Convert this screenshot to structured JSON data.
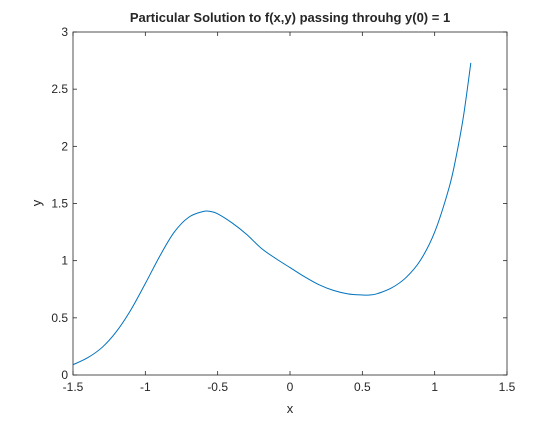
{
  "chart_data": {
    "type": "line",
    "title": "Particular Solution to f(x,y) passing throuhg y(0) = 1",
    "xlabel": "x",
    "ylabel": "y",
    "xlim": [
      -1.5,
      1.5
    ],
    "ylim": [
      0,
      3
    ],
    "xticks": [
      -1.5,
      -1,
      -0.5,
      0,
      0.5,
      1,
      1.5
    ],
    "xtick_labels": [
      "-1.5",
      "-1",
      "-0.5",
      "0",
      "0.5",
      "1",
      "1.5"
    ],
    "yticks": [
      0,
      0.5,
      1,
      1.5,
      2,
      2.5,
      3
    ],
    "ytick_labels": [
      "0",
      "0.5",
      "1",
      "1.5",
      "2",
      "2.5",
      "3"
    ],
    "grid": false,
    "box": true,
    "line_color": "#0072BD",
    "series": [
      {
        "x": [
          -1.5,
          -1.4,
          -1.3,
          -1.2,
          -1.1,
          -1.0,
          -0.9,
          -0.8,
          -0.7,
          -0.6,
          -0.55,
          -0.5,
          -0.4,
          -0.3,
          -0.2,
          -0.1,
          0.0,
          0.1,
          0.2,
          0.3,
          0.4,
          0.5,
          0.55,
          0.6,
          0.7,
          0.8,
          0.9,
          1.0,
          1.1,
          1.15,
          1.2,
          1.25
        ],
        "y": [
          0.09,
          0.15,
          0.24,
          0.38,
          0.57,
          0.8,
          1.04,
          1.25,
          1.38,
          1.43,
          1.43,
          1.41,
          1.33,
          1.23,
          1.11,
          1.02,
          0.94,
          0.86,
          0.79,
          0.74,
          0.71,
          0.7,
          0.7,
          0.71,
          0.76,
          0.85,
          1.0,
          1.25,
          1.64,
          1.92,
          2.27,
          2.73
        ]
      }
    ]
  }
}
